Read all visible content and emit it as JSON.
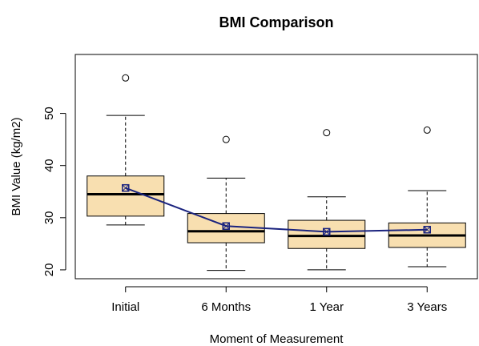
{
  "chart_data": {
    "type": "boxplot",
    "title": "BMI Comparison",
    "xlabel": "Moment of Measurement",
    "ylabel": "BMI Value (kg/m2)",
    "categories": [
      "Initial",
      "6 Months",
      "1 Year",
      "3 Years"
    ],
    "y_ticks": [
      20,
      30,
      40,
      50
    ],
    "ylim": [
      18.3,
      61.3
    ],
    "box_fill": "#F8DFB0",
    "mean_line_color": "#1A237E",
    "boxes": [
      {
        "category": "Initial",
        "whisker_low": 28.6,
        "q1": 30.3,
        "median": 34.5,
        "q3": 38.0,
        "whisker_high": 49.6,
        "outliers": [
          56.8
        ],
        "mean": 35.7
      },
      {
        "category": "6 Months",
        "whisker_low": 19.9,
        "q1": 25.2,
        "median": 27.4,
        "q3": 30.8,
        "whisker_high": 37.6,
        "outliers": [
          45.0
        ],
        "mean": 28.4
      },
      {
        "category": "1 Year",
        "whisker_low": 20.0,
        "q1": 24.1,
        "median": 26.5,
        "q3": 29.5,
        "whisker_high": 34.0,
        "outliers": [
          46.3
        ],
        "mean": 27.3
      },
      {
        "category": "3 Years",
        "whisker_low": 20.6,
        "q1": 24.3,
        "median": 26.6,
        "q3": 29.0,
        "whisker_high": 35.2,
        "outliers": [
          46.8
        ],
        "mean": 27.7
      }
    ]
  }
}
